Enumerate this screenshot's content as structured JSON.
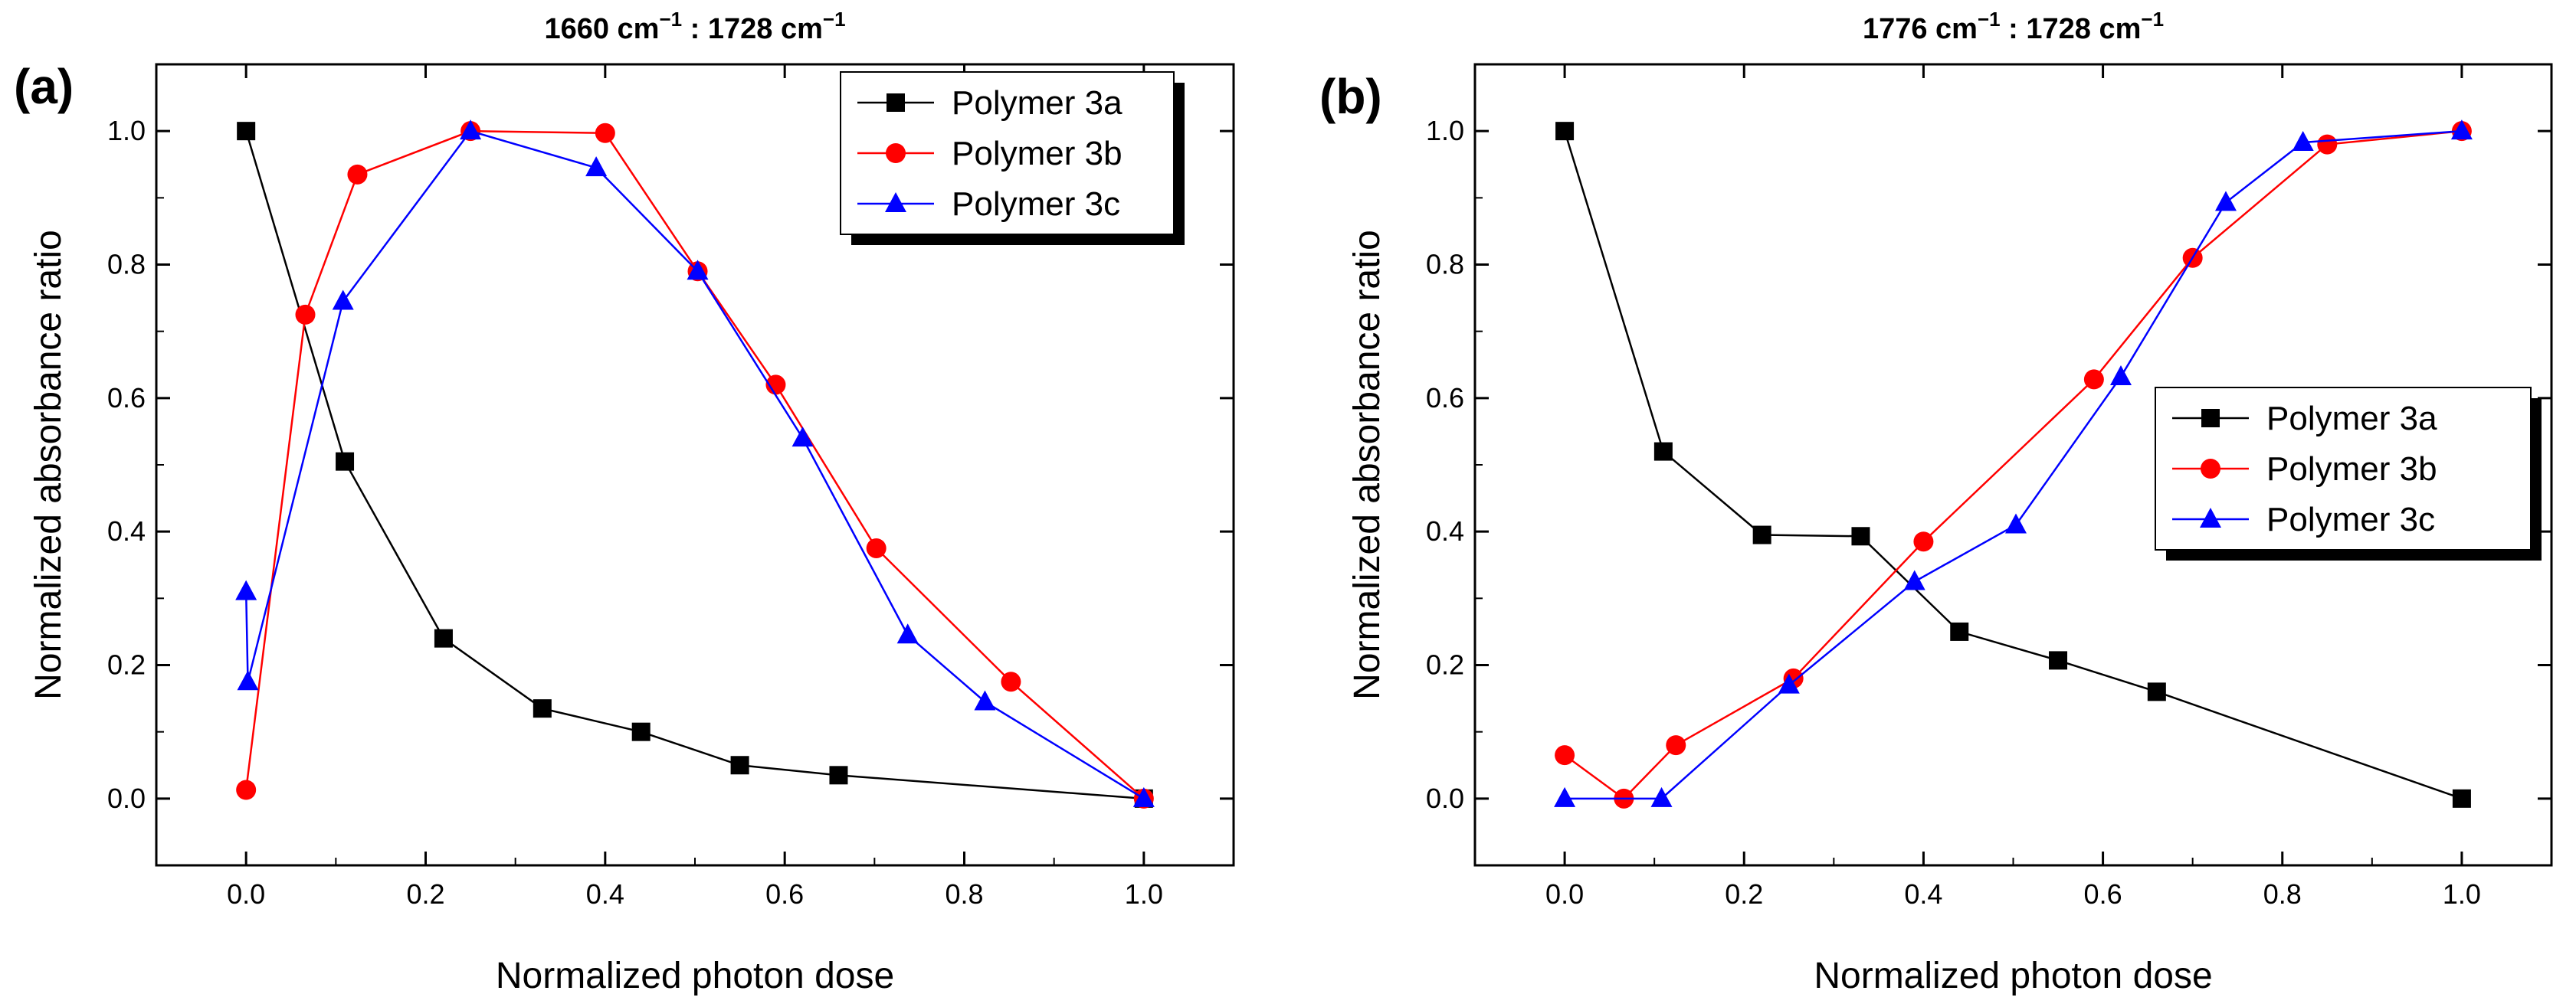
{
  "chart_data": [
    {
      "type": "line",
      "panel_label": "(a)",
      "title_parts": {
        "first": "1660 cm",
        "sup1": "−1",
        "middle": " : 1728 cm",
        "sup2": "−1"
      },
      "xlabel": "Normalized photon dose",
      "ylabel": "Normalized absorbance ratio",
      "xlim": [
        -0.1,
        1.1
      ],
      "ylim": [
        -0.1,
        1.1
      ],
      "xticks": [
        "0.0",
        "0.2",
        "0.4",
        "0.6",
        "0.8",
        "1.0"
      ],
      "yticks": [
        "0.0",
        "0.2",
        "0.4",
        "0.6",
        "0.8",
        "1.0"
      ],
      "legend_position": "top-right",
      "series": [
        {
          "name": "Polymer 3a",
          "color": "#000000",
          "marker": "square",
          "x": [
            0.0,
            0.11,
            0.22,
            0.33,
            0.44,
            0.55,
            0.66,
            1.0
          ],
          "y": [
            1.0,
            0.505,
            0.24,
            0.135,
            0.1,
            0.05,
            0.035,
            0.0
          ]
        },
        {
          "name": "Polymer 3b",
          "color": "#ff0000",
          "marker": "circle",
          "x": [
            0.0,
            0.066,
            0.124,
            0.25,
            0.4,
            0.503,
            0.59,
            0.702,
            0.852,
            1.0
          ],
          "y": [
            0.013,
            0.725,
            0.935,
            1.0,
            0.997,
            0.79,
            0.62,
            0.375,
            0.175,
            0.0
          ]
        },
        {
          "name": "Polymer 3c",
          "color": "#0000ff",
          "marker": "triangle",
          "x": [
            0.0,
            0.002,
            0.108,
            0.25,
            0.39,
            0.503,
            0.62,
            0.737,
            0.823,
            1.0
          ],
          "y": [
            0.31,
            0.175,
            0.745,
            1.0,
            0.945,
            0.79,
            0.54,
            0.245,
            0.145,
            0.0
          ]
        }
      ]
    },
    {
      "type": "line",
      "panel_label": "(b)",
      "title_parts": {
        "first": "1776 cm",
        "sup1": "−1",
        "middle": " : 1728 cm",
        "sup2": "−1"
      },
      "xlabel": "Normalized photon dose",
      "ylabel": "Normalized absorbance ratio",
      "xlim": [
        -0.1,
        1.1
      ],
      "ylim": [
        -0.1,
        1.1
      ],
      "xticks": [
        "0.0",
        "0.2",
        "0.4",
        "0.6",
        "0.8",
        "1.0"
      ],
      "yticks": [
        "0.0",
        "0.2",
        "0.4",
        "0.6",
        "0.8",
        "1.0"
      ],
      "legend_position": "center-right",
      "series": [
        {
          "name": "Polymer 3a",
          "color": "#000000",
          "marker": "square",
          "x": [
            0.0,
            0.11,
            0.22,
            0.33,
            0.44,
            0.55,
            0.66,
            1.0
          ],
          "y": [
            1.0,
            0.52,
            0.395,
            0.393,
            0.25,
            0.207,
            0.16,
            0.0
          ]
        },
        {
          "name": "Polymer 3b",
          "color": "#ff0000",
          "marker": "circle",
          "x": [
            0.0,
            0.066,
            0.124,
            0.255,
            0.4,
            0.59,
            0.7,
            0.85,
            1.0
          ],
          "y": [
            0.065,
            0.0,
            0.08,
            0.18,
            0.385,
            0.628,
            0.81,
            0.98,
            1.0
          ]
        },
        {
          "name": "Polymer 3c",
          "color": "#0000ff",
          "marker": "triangle",
          "x": [
            0.0,
            0.108,
            0.25,
            0.39,
            0.503,
            0.62,
            0.737,
            0.823,
            1.0
          ],
          "y": [
            0.0,
            0.0,
            0.17,
            0.325,
            0.41,
            0.632,
            0.893,
            0.983,
            1.0
          ]
        }
      ]
    }
  ]
}
